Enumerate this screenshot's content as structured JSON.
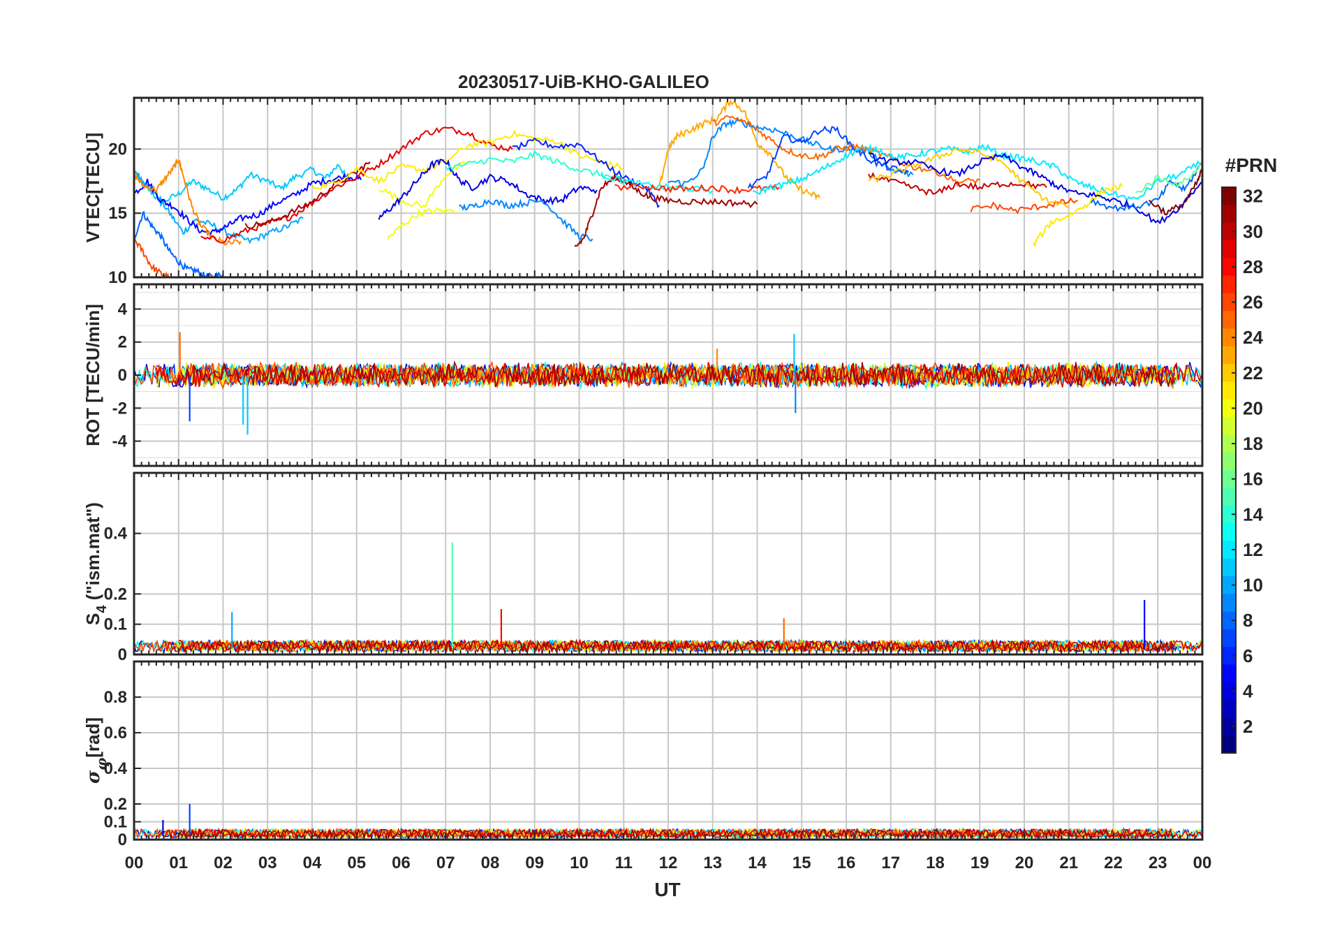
{
  "title": "20230517-UiB-KHO-GALILEO",
  "x_axis": {
    "label": "UT",
    "ticks": [
      "00",
      "01",
      "02",
      "03",
      "04",
      "05",
      "06",
      "07",
      "08",
      "09",
      "10",
      "11",
      "12",
      "13",
      "14",
      "15",
      "16",
      "17",
      "18",
      "19",
      "20",
      "21",
      "22",
      "23",
      "00"
    ]
  },
  "colorbar": {
    "label": "#PRN",
    "range": [
      1,
      32
    ],
    "ticks": [
      "2",
      "4",
      "6",
      "8",
      "10",
      "12",
      "14",
      "16",
      "18",
      "20",
      "22",
      "24",
      "26",
      "28",
      "30",
      "32"
    ],
    "colormap": "jet"
  },
  "chart_data": [
    {
      "type": "line",
      "panel": "vtec",
      "ylabel": "VTEC[TECU]",
      "ylim": [
        10,
        24
      ],
      "yticks": [
        "10",
        "15",
        "20"
      ],
      "x_unit": "hours UT",
      "series": [
        {
          "prn": 11,
          "x": [
            0.0,
            0.3,
            0.6,
            1.0,
            1.3,
            1.6,
            2.0,
            2.3,
            2.6,
            3.0,
            3.3,
            3.6,
            4.0,
            4.3,
            4.6,
            4.8
          ],
          "y": [
            17.9,
            17.0,
            15.8,
            16.5,
            17.5,
            17.0,
            16.2,
            16.8,
            18.0,
            17.5,
            16.9,
            17.8,
            18.4,
            17.7,
            18.8,
            17.6
          ]
        },
        {
          "prn": 10,
          "x": [
            0.0,
            0.2,
            0.5,
            0.8,
            1.1,
            1.4,
            1.8,
            2.2,
            2.6,
            3.0,
            3.4,
            3.8
          ],
          "y": [
            18.4,
            17.5,
            16.5,
            15.0,
            13.5,
            14.5,
            14.0,
            13.3,
            12.8,
            13.4,
            13.9,
            14.6
          ]
        },
        {
          "prn": 8,
          "x": [
            0.0,
            0.2,
            0.4,
            0.6,
            0.8,
            1.0,
            1.2,
            1.4,
            1.6,
            1.8,
            2.0
          ],
          "y": [
            13.0,
            15.0,
            14.0,
            13.2,
            12.0,
            11.2,
            10.6,
            10.5,
            10.1,
            10.0,
            10.3
          ]
        },
        {
          "prn": 5,
          "x": [
            0.0,
            0.3,
            0.6,
            0.9,
            1.2,
            1.5,
            1.8,
            2.1,
            2.4,
            2.8,
            3.2,
            3.6,
            4.0,
            4.4,
            4.8,
            5.1
          ],
          "y": [
            16.5,
            17.5,
            16.0,
            15.5,
            14.5,
            13.6,
            13.5,
            14.0,
            14.6,
            14.9,
            15.8,
            16.4,
            17.3,
            17.6,
            17.9,
            17.6
          ]
        },
        {
          "prn": 24,
          "x": [
            0.0,
            0.2,
            0.5,
            0.7,
            0.9,
            1.0,
            1.1,
            1.3,
            1.5,
            1.8,
            2.1,
            2.4
          ],
          "y": [
            18.0,
            17.2,
            16.8,
            17.7,
            18.6,
            19.2,
            18.0,
            15.5,
            14.0,
            13.0,
            12.6,
            12.8
          ]
        },
        {
          "prn": 26,
          "x": [
            0.0,
            0.2,
            0.4,
            0.6,
            0.8
          ],
          "y": [
            13.0,
            12.0,
            10.8,
            10.3,
            10.0
          ]
        },
        {
          "prn": 29,
          "x": [
            1.5,
            2.0,
            2.5,
            3.0,
            3.5,
            4.0,
            4.5,
            5.0,
            5.5,
            6.0,
            6.5,
            7.0,
            7.5,
            8.0,
            8.5
          ],
          "y": [
            13.0,
            12.9,
            13.6,
            14.2,
            14.7,
            15.8,
            17.0,
            17.8,
            18.8,
            20.0,
            21.2,
            21.6,
            21.3,
            20.3,
            20.0
          ]
        },
        {
          "prn": 31,
          "x": [
            2.5,
            3.0,
            3.5,
            4.0,
            4.5,
            5.0,
            5.3
          ],
          "y": [
            14.0,
            14.2,
            15.0,
            15.9,
            17.2,
            18.2,
            19.0
          ]
        },
        {
          "prn": 21,
          "x": [
            4.0,
            4.5,
            5.0,
            5.5,
            6.0,
            6.5,
            7.0,
            7.5,
            8.0,
            8.5,
            9.0,
            9.5,
            10.0,
            10.5,
            11.0
          ],
          "y": [
            17.0,
            17.3,
            18.5,
            17.5,
            18.6,
            18.4,
            19.0,
            20.3,
            20.5,
            21.2,
            20.8,
            20.6,
            19.5,
            19.0,
            18.5
          ]
        },
        {
          "prn": 20,
          "x": [
            5.7,
            6.0,
            6.4,
            6.8,
            7.2
          ],
          "y": [
            13.0,
            14.0,
            15.0,
            15.2,
            15.2
          ]
        },
        {
          "prn": 20,
          "x": [
            5.5,
            6.0,
            6.5,
            7.0,
            7.5
          ],
          "y": [
            17.0,
            16.0,
            15.5,
            18.0,
            19.0
          ]
        },
        {
          "prn": 4,
          "x": [
            5.5,
            5.8,
            6.1,
            6.4,
            6.7,
            7.0,
            7.3,
            7.6,
            8.0,
            8.4,
            8.8,
            9.2,
            9.6,
            10.0,
            10.4
          ],
          "y": [
            14.6,
            15.5,
            16.5,
            17.7,
            18.8,
            19.1,
            17.6,
            17.0,
            17.8,
            17.5,
            16.5,
            16.0,
            16.0,
            17.0,
            16.8
          ]
        },
        {
          "prn": 9,
          "x": [
            7.3,
            7.6,
            8.0,
            8.4,
            8.8,
            9.2,
            9.6,
            10.0,
            10.3
          ],
          "y": [
            15.4,
            15.5,
            16.0,
            15.6,
            15.8,
            16.0,
            14.5,
            13.2,
            13.0
          ]
        },
        {
          "prn": 6,
          "x": [
            8.5,
            9.0,
            9.5,
            10.0,
            10.5,
            11.0,
            11.5,
            11.8
          ],
          "y": [
            20.0,
            20.6,
            20.2,
            20.4,
            19.0,
            17.8,
            17.0,
            15.6
          ]
        },
        {
          "prn": 14,
          "x": [
            7.0,
            7.5,
            8.0,
            8.5,
            9.0,
            9.5,
            10.0,
            10.5,
            11.0
          ],
          "y": [
            18.5,
            18.8,
            19.2,
            19.0,
            19.6,
            19.0,
            18.4,
            18.0,
            17.5
          ]
        },
        {
          "prn": 31,
          "x": [
            9.9,
            10.1,
            10.3,
            10.5,
            10.8,
            11.0,
            11.3,
            11.6,
            12.0,
            12.5,
            13.0,
            13.5,
            14.0
          ],
          "y": [
            12.3,
            13.0,
            15.0,
            17.0,
            17.8,
            17.5,
            16.8,
            16.2,
            16.0,
            15.9,
            15.9,
            15.8,
            15.7
          ]
        },
        {
          "prn": 13,
          "x": [
            10.5,
            11.0,
            11.5,
            12.0,
            12.5,
            13.0
          ],
          "y": [
            18.0,
            17.5,
            17.2,
            17.0,
            16.9,
            16.8
          ]
        },
        {
          "prn": 27,
          "x": [
            10.8,
            11.5,
            12.0,
            12.5,
            13.0,
            13.5,
            14.0,
            14.5
          ],
          "y": [
            17.0,
            17.1,
            16.9,
            16.9,
            17.0,
            16.8,
            16.9,
            17.0
          ]
        },
        {
          "prn": 23,
          "x": [
            11.8,
            12.0,
            12.2,
            12.5,
            12.8,
            13.1,
            13.4,
            13.7,
            14.0,
            14.3,
            14.6,
            14.9,
            15.2,
            15.4
          ],
          "y": [
            17.0,
            20.0,
            21.0,
            21.5,
            22.0,
            22.4,
            23.8,
            23.0,
            20.5,
            19.6,
            18.0,
            17.0,
            16.5,
            16.2
          ]
        },
        {
          "prn": 9,
          "x": [
            12.0,
            12.4,
            12.8,
            13.0,
            13.3,
            13.6,
            14.0,
            14.4,
            14.8,
            15.2,
            15.6,
            16.0,
            16.5,
            17.0,
            17.5
          ],
          "y": [
            17.5,
            17.3,
            18.5,
            21.0,
            22.0,
            22.1,
            21.7,
            21.5,
            21.0,
            20.5,
            20.0,
            20.0,
            19.8,
            18.4,
            18.0
          ]
        },
        {
          "prn": 25,
          "x": [
            13.0,
            13.4,
            13.8,
            14.2,
            14.6,
            15.0,
            15.4,
            15.8,
            16.2,
            16.6,
            17.0,
            17.5,
            18.0,
            18.5,
            19.0
          ],
          "y": [
            22.0,
            22.5,
            22.0,
            21.0,
            20.0,
            19.5,
            19.4,
            20.0,
            20.2,
            19.8,
            19.3,
            18.6,
            18.3,
            17.4,
            17.6
          ]
        },
        {
          "prn": 7,
          "x": [
            13.8,
            14.2,
            14.6,
            15.0,
            15.4,
            15.8,
            16.2,
            16.6,
            17.0,
            17.4
          ],
          "y": [
            17.0,
            17.8,
            21.0,
            20.5,
            21.5,
            21.5,
            20.0,
            19.0,
            18.5,
            18.2
          ]
        },
        {
          "prn": 12,
          "x": [
            13.9,
            14.3,
            14.7,
            15.1,
            15.5,
            15.9,
            16.3,
            16.7,
            17.1,
            17.5,
            17.9,
            18.3,
            18.7,
            19.1,
            19.5,
            19.9,
            20.3,
            20.7,
            21.1,
            21.5,
            22.0,
            22.5,
            23.0,
            23.5,
            24.0
          ],
          "y": [
            16.5,
            17.0,
            17.3,
            17.8,
            18.5,
            19.3,
            20.0,
            20.0,
            19.3,
            19.5,
            19.8,
            20.0,
            19.8,
            20.2,
            19.5,
            19.3,
            19.0,
            18.6,
            17.5,
            17.0,
            16.5,
            16.0,
            17.5,
            18.0,
            19.0
          ]
        },
        {
          "prn": 30,
          "x": [
            16.5,
            17.0,
            17.5,
            18.0,
            18.5,
            19.0,
            19.5,
            20.0,
            20.5
          ],
          "y": [
            18.0,
            17.5,
            17.0,
            16.5,
            17.3,
            17.0,
            17.3,
            17.3,
            17.0
          ]
        },
        {
          "prn": 26,
          "x": [
            18.8,
            19.3,
            19.8,
            20.3,
            20.8,
            21.2
          ],
          "y": [
            15.3,
            15.6,
            15.2,
            15.5,
            15.8,
            16.0
          ]
        },
        {
          "prn": 22,
          "x": [
            16.5,
            17.0,
            17.5,
            18.0,
            18.5,
            19.0,
            19.5,
            20.0,
            20.5,
            21.0
          ],
          "y": [
            17.5,
            18.0,
            18.7,
            19.3,
            20.0,
            19.7,
            19.0,
            17.3,
            16.0,
            15.5
          ]
        },
        {
          "prn": 21,
          "x": [
            20.2,
            20.6,
            21.0,
            21.4,
            21.8,
            22.2
          ],
          "y": [
            12.5,
            14.3,
            14.8,
            15.7,
            16.8,
            17.1
          ]
        },
        {
          "prn": 4,
          "x": [
            16.5,
            17.0,
            17.5,
            18.0,
            18.5,
            19.0,
            19.5,
            20.0,
            20.4,
            20.8,
            21.2,
            21.6,
            22.0,
            22.5,
            23.0,
            23.5,
            24.0
          ],
          "y": [
            19.5,
            19.0,
            19.0,
            18.4,
            18.0,
            19.0,
            19.5,
            18.5,
            17.8,
            17.0,
            16.5,
            16.4,
            16.0,
            15.5,
            14.2,
            15.5,
            17.5
          ]
        },
        {
          "prn": 8,
          "x": [
            21.5,
            22.0,
            22.5,
            23.0,
            23.3,
            23.6,
            24.0
          ],
          "y": [
            16.0,
            15.4,
            15.5,
            16.0,
            17.5,
            16.8,
            19.0
          ]
        },
        {
          "prn": 16,
          "x": [
            22.5,
            23.0,
            23.5,
            24.0
          ],
          "y": [
            16.5,
            17.8,
            17.2,
            18.8
          ]
        },
        {
          "prn": 32,
          "x": [
            22.8,
            23.2,
            23.6,
            23.9,
            24.0
          ],
          "y": [
            16.0,
            15.0,
            15.8,
            17.5,
            18.5
          ]
        }
      ]
    },
    {
      "type": "line",
      "panel": "rot",
      "ylabel": "ROT [TECU/min]",
      "ylim": [
        -5.5,
        5.5
      ],
      "yticks": [
        "-4",
        "-2",
        "0",
        "2",
        "4"
      ],
      "noise_band": [
        -0.5,
        0.5
      ],
      "spikes": [
        {
          "prn": 25,
          "x": 1.03,
          "y": 2.6
        },
        {
          "prn": 7,
          "x": 1.25,
          "y": -2.8
        },
        {
          "prn": 11,
          "x": 2.55,
          "y": -3.6
        },
        {
          "prn": 11,
          "x": 2.45,
          "y": -3.0
        },
        {
          "prn": 11,
          "x": 14.83,
          "y": 2.5
        },
        {
          "prn": 9,
          "x": 14.86,
          "y": -2.3
        },
        {
          "prn": 24,
          "x": 13.1,
          "y": 1.6
        }
      ]
    },
    {
      "type": "line",
      "panel": "s4",
      "ylabel": "S4 (\"ism.mat\")",
      "ylim": [
        0,
        0.6
      ],
      "yticks": [
        "0",
        "0.1",
        "0.2",
        "0.4"
      ],
      "baseline": [
        0.0,
        0.06
      ],
      "spikes": [
        {
          "prn": 15,
          "x": 7.15,
          "y": 0.37
        },
        {
          "prn": 28,
          "x": 8.25,
          "y": 0.15
        },
        {
          "prn": 5,
          "x": 22.7,
          "y": 0.18
        },
        {
          "prn": 25,
          "x": 14.6,
          "y": 0.12
        },
        {
          "prn": 10,
          "x": 2.2,
          "y": 0.14
        }
      ]
    },
    {
      "type": "line",
      "panel": "sigma_phi",
      "ylabel": "σφ[rad]",
      "ylim": [
        0,
        1.0
      ],
      "yticks": [
        "0",
        "0.1",
        "0.2",
        "0.4",
        "0.6",
        "0.8"
      ],
      "baseline": [
        0.0,
        0.08
      ],
      "spikes": [
        {
          "prn": 7,
          "x": 1.25,
          "y": 0.2
        },
        {
          "prn": 4,
          "x": 0.65,
          "y": 0.11
        }
      ]
    }
  ]
}
